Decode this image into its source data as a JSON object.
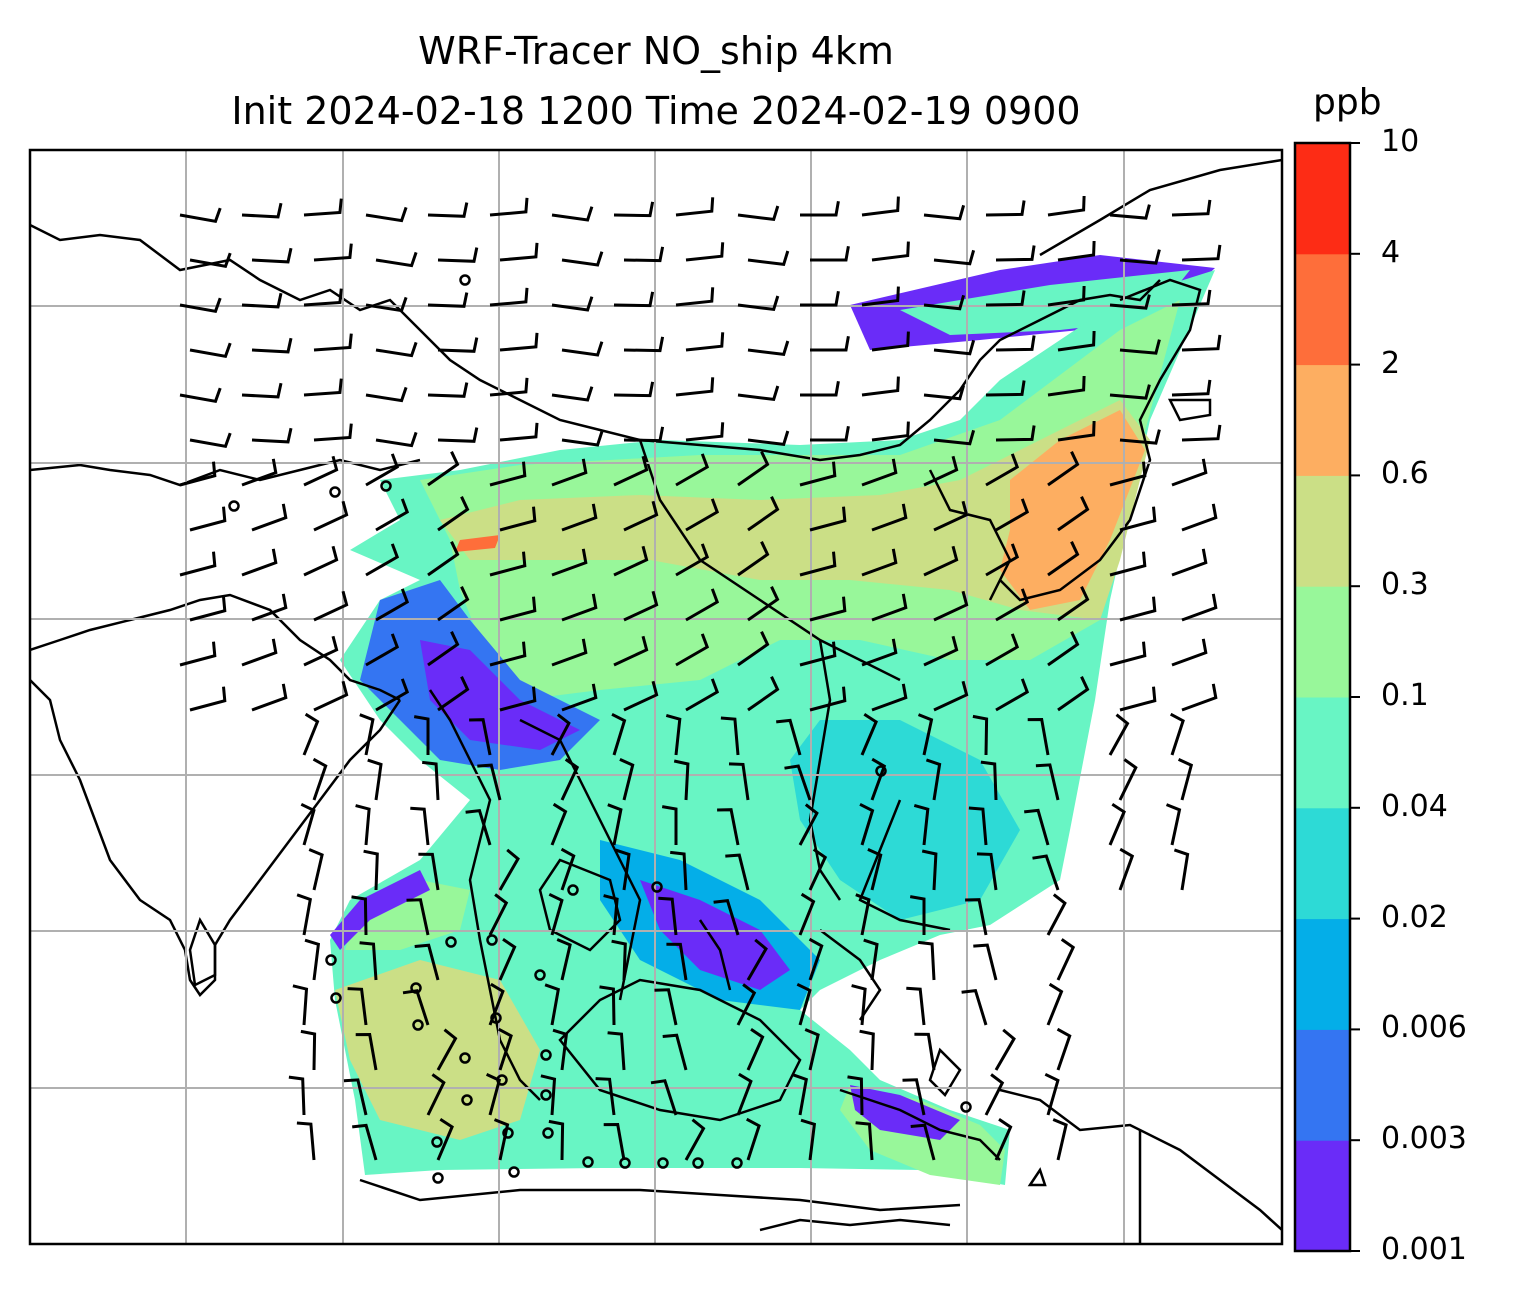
{
  "title": {
    "line1": "WRF-Tracer NO_ship 4km",
    "line2": "Init 2024-02-18 1200 Time 2024-02-19 0900"
  },
  "colorbar": {
    "unit": "ppb",
    "levels": [
      "0.001",
      "0.003",
      "0.006",
      "0.02",
      "0.04",
      "0.1",
      "0.3",
      "0.6",
      "2",
      "4",
      "10"
    ],
    "colors": [
      "#6a2cf8",
      "#3475f2",
      "#04aee8",
      "#2ddad6",
      "#68f5c4",
      "#98f79a",
      "#cbdf86",
      "#fdae61",
      "#fe6e3a",
      "#fd2c15"
    ]
  },
  "map": {
    "colors": {
      "gridline": "#b0b0b0",
      "coast": "#000000",
      "barb": "#000000"
    }
  }
}
